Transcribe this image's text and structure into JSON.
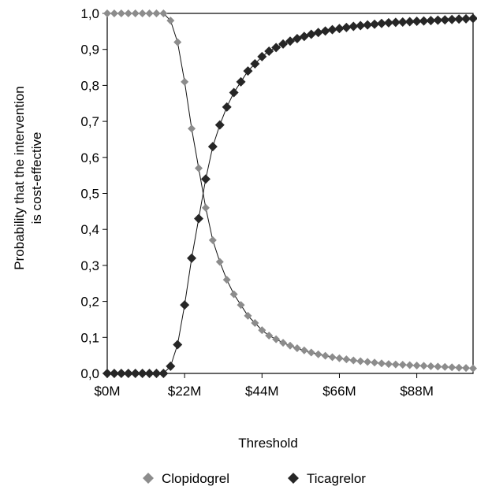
{
  "chart_data": {
    "type": "line",
    "xlabel": "Threshold",
    "ylabel": "Probability that the intervention is cost-effective",
    "ylabel_lines": [
      "Probability that the intervention",
      "is cost-effective"
    ],
    "xlim": [
      0,
      104
    ],
    "ylim": [
      0,
      1
    ],
    "x_ticks": [
      0,
      22,
      44,
      66,
      88
    ],
    "x_tick_labels": [
      "$0M",
      "$22M",
      "$44M",
      "$66M",
      "$88M"
    ],
    "y_ticks": [
      0,
      0.1,
      0.2,
      0.3,
      0.4,
      0.5,
      0.6,
      0.7,
      0.8,
      0.9,
      1.0
    ],
    "y_tick_labels": [
      "0,0",
      "0,1",
      "0,2",
      "0,3",
      "0,4",
      "0,5",
      "0,6",
      "0,7",
      "0,8",
      "0,9",
      "1,0"
    ],
    "grid": false,
    "legend_position": "bottom",
    "x": [
      0,
      2,
      4,
      6,
      8,
      10,
      12,
      14,
      16,
      18,
      20,
      22,
      24,
      26,
      28,
      30,
      32,
      34,
      36,
      38,
      40,
      42,
      44,
      46,
      48,
      50,
      52,
      54,
      56,
      58,
      60,
      62,
      64,
      66,
      68,
      70,
      72,
      74,
      76,
      78,
      80,
      82,
      84,
      86,
      88,
      90,
      92,
      94,
      96,
      98,
      100,
      102,
      104
    ],
    "series": [
      {
        "name": "Clopidogrel",
        "color": "#8c8c8c",
        "marker": "diamond",
        "values": [
          1.0,
          1.0,
          1.0,
          1.0,
          1.0,
          1.0,
          1.0,
          1.0,
          1.0,
          0.98,
          0.92,
          0.81,
          0.68,
          0.57,
          0.46,
          0.37,
          0.31,
          0.26,
          0.22,
          0.19,
          0.16,
          0.14,
          0.12,
          0.105,
          0.095,
          0.085,
          0.077,
          0.07,
          0.064,
          0.058,
          0.053,
          0.049,
          0.045,
          0.042,
          0.039,
          0.036,
          0.034,
          0.032,
          0.03,
          0.028,
          0.026,
          0.025,
          0.024,
          0.023,
          0.022,
          0.021,
          0.02,
          0.019,
          0.018,
          0.017,
          0.016,
          0.015,
          0.014
        ]
      },
      {
        "name": "Ticagrelor",
        "color": "#262626",
        "marker": "diamond",
        "values": [
          0.0,
          0.0,
          0.0,
          0.0,
          0.0,
          0.0,
          0.0,
          0.0,
          0.0,
          0.02,
          0.08,
          0.19,
          0.32,
          0.43,
          0.54,
          0.63,
          0.69,
          0.74,
          0.78,
          0.81,
          0.84,
          0.86,
          0.88,
          0.895,
          0.905,
          0.915,
          0.923,
          0.93,
          0.936,
          0.942,
          0.947,
          0.951,
          0.955,
          0.958,
          0.961,
          0.964,
          0.966,
          0.968,
          0.97,
          0.972,
          0.974,
          0.975,
          0.976,
          0.977,
          0.978,
          0.979,
          0.98,
          0.981,
          0.982,
          0.983,
          0.984,
          0.985,
          0.986
        ]
      }
    ]
  }
}
